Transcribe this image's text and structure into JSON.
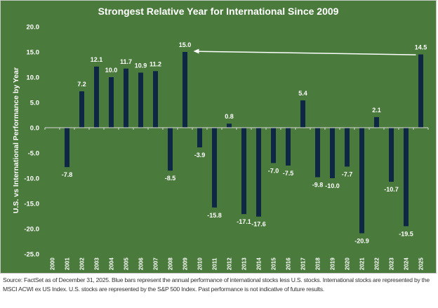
{
  "chart_data": {
    "type": "bar",
    "title": "Strongest Relative Year for International Since 2009",
    "ylabel": "U.S. vs International Performance by Year",
    "xlabel": "",
    "categories": [
      "2000",
      "2001",
      "2002",
      "2003",
      "2004",
      "2005",
      "2006",
      "2007",
      "2008",
      "2009",
      "2010",
      "2011",
      "2012",
      "2013",
      "2014",
      "2015",
      "2016",
      "2017",
      "2018",
      "2019",
      "2020",
      "2021",
      "2022",
      "2023",
      "2024",
      "2025"
    ],
    "values": [
      null,
      -7.8,
      7.2,
      12.1,
      10.0,
      11.7,
      10.9,
      11.2,
      -8.5,
      15.0,
      -3.9,
      -15.8,
      0.8,
      -17.1,
      -17.6,
      -7.0,
      -7.5,
      5.4,
      -9.8,
      -10.0,
      -7.7,
      -20.9,
      2.1,
      -10.7,
      -19.5,
      14.5
    ],
    "ylim": [
      -25,
      20
    ],
    "yticks": [
      "20.0",
      "15.0",
      "10.0",
      "5.0",
      "0.0",
      "-5.0",
      "-10.0",
      "-15.0",
      "-20.0",
      "-25.0"
    ],
    "grid": false,
    "annotation": {
      "type": "arrow",
      "from": "2025",
      "to": "2009"
    },
    "colors": {
      "background": "#4a7a3c",
      "bar": "#0d2744",
      "text": "#ffffff"
    }
  },
  "footnote": "Source: FactSet as of December 31, 2025. Blue bars represent the annual performance of international stocks less U.S. stocks. International stocks are represented by the MSCI ACWI ex US Index. U.S. stocks are represented by the S&P 500 Index. Past performance is not indicative of future results."
}
